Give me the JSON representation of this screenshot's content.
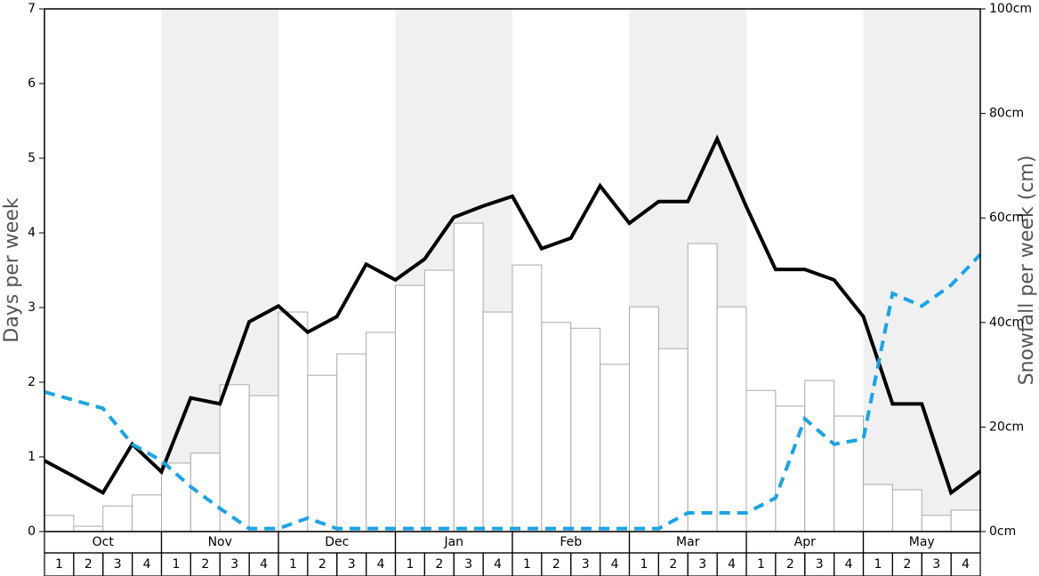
{
  "chart_data": {
    "type": "bar",
    "ylabel": "Days per week",
    "y2label": "Snowfall per week (cm)",
    "months": [
      "Oct",
      "Nov",
      "Dec",
      "Jan",
      "Feb",
      "Mar",
      "Apr",
      "May"
    ],
    "categories": [
      "1",
      "2",
      "3",
      "4",
      "1",
      "2",
      "3",
      "4",
      "1",
      "2",
      "3",
      "4",
      "1",
      "2",
      "3",
      "4",
      "1",
      "2",
      "3",
      "4",
      "1",
      "2",
      "3",
      "4",
      "1",
      "2",
      "3",
      "4",
      "1",
      "2",
      "3",
      "4"
    ],
    "x": [
      0,
      1,
      2,
      3,
      4,
      5,
      6,
      7,
      8,
      9,
      10,
      11,
      12,
      13,
      14,
      15,
      16,
      17,
      18,
      19,
      20,
      21,
      22,
      23,
      24,
      25,
      26,
      27,
      28,
      29,
      30,
      31,
      32
    ],
    "xlim": [
      0,
      32
    ],
    "ylim": [
      0,
      7
    ],
    "yticks": [
      0,
      1,
      2,
      3,
      4,
      5,
      6,
      7
    ],
    "y2lim": [
      0,
      100
    ],
    "y2ticks": [
      {
        "value": 0,
        "label": "0cm"
      },
      {
        "value": 20,
        "label": "20cm"
      },
      {
        "value": 40,
        "label": "40cm"
      },
      {
        "value": 60,
        "label": "60cm"
      },
      {
        "value": 80,
        "label": "80cm"
      },
      {
        "value": 100,
        "label": "100cm"
      }
    ],
    "series": [
      {
        "type": "bar",
        "axis": "y2",
        "color": "#ffffff",
        "values": [
          3.1,
          1.0,
          4.9,
          7.0,
          13.1,
          15.0,
          28.1,
          26.0,
          42.0,
          29.9,
          34.0,
          38.1,
          47.1,
          50.0,
          59.0,
          42.0,
          51.0,
          40.0,
          38.9,
          32.0,
          43.0,
          35.0,
          55.1,
          43.0,
          27.0,
          24.0,
          28.9,
          22.1,
          9.0,
          8.0,
          3.1,
          4.1
        ]
      },
      {
        "type": "line",
        "color": "#000000",
        "values": [
          0.95,
          0.74,
          0.52,
          1.17,
          0.8,
          1.79,
          1.71,
          2.81,
          3.02,
          2.67,
          2.88,
          3.58,
          3.37,
          3.65,
          4.21,
          4.36,
          4.49,
          3.79,
          3.93,
          4.63,
          4.13,
          4.42,
          4.42,
          5.26,
          4.35,
          3.51,
          3.51,
          3.37,
          2.88,
          1.71,
          1.71,
          0.52,
          0.81
        ]
      },
      {
        "type": "line",
        "color": "#1aa3e8",
        "dashed": true,
        "values": [
          1.87,
          1.76,
          1.65,
          1.17,
          0.95,
          0.6,
          0.31,
          0.04,
          0.04,
          0.18,
          0.04,
          0.04,
          0.04,
          0.04,
          0.04,
          0.04,
          0.04,
          0.04,
          0.04,
          0.04,
          0.04,
          0.04,
          0.25,
          0.25,
          0.25,
          0.45,
          1.51,
          1.17,
          1.24,
          3.19,
          3.02,
          3.3,
          3.71
        ]
      }
    ]
  }
}
